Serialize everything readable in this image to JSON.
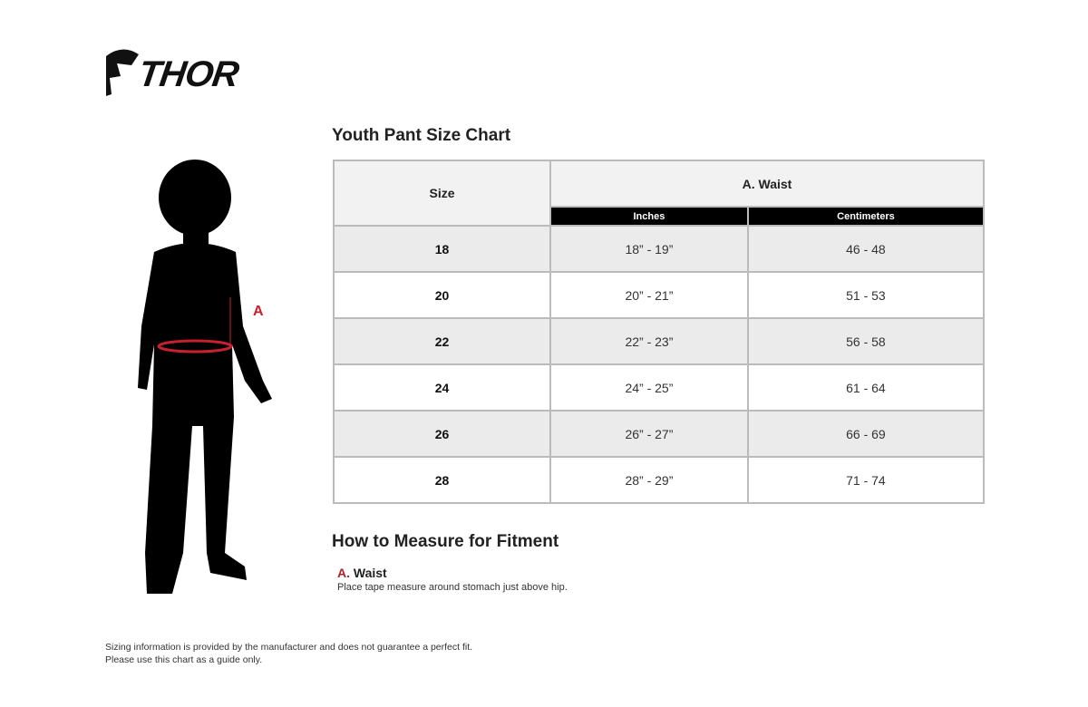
{
  "logo": {
    "text": "THOR"
  },
  "title": "Youth Pant Size Chart",
  "table": {
    "size_header": "Size",
    "group_header": "A. Waist",
    "sub_headers": [
      "Inches",
      "Centimeters"
    ],
    "rows": [
      {
        "size": "18",
        "inches": "18” - 19”",
        "cm": "46 - 48"
      },
      {
        "size": "20",
        "inches": "20” - 21”",
        "cm": "51 - 53"
      },
      {
        "size": "22",
        "inches": "22” - 23”",
        "cm": "56 - 58"
      },
      {
        "size": "24",
        "inches": "24” - 25”",
        "cm": "61 - 64"
      },
      {
        "size": "26",
        "inches": "26” - 27”",
        "cm": "66 - 69"
      },
      {
        "size": "28",
        "inches": "28” - 29”",
        "cm": "71 - 74"
      }
    ]
  },
  "figure": {
    "label": "A",
    "accent": "#c8202e"
  },
  "how": {
    "title": "How to Measure for Fitment",
    "items": [
      {
        "letter": "A.",
        "name": "Waist",
        "desc": "Place tape measure around stomach just above hip."
      }
    ]
  },
  "disclaimer": [
    "Sizing information is provided by the manufacturer and does not guarantee a perfect fit.",
    "Please use this chart as a guide only."
  ]
}
